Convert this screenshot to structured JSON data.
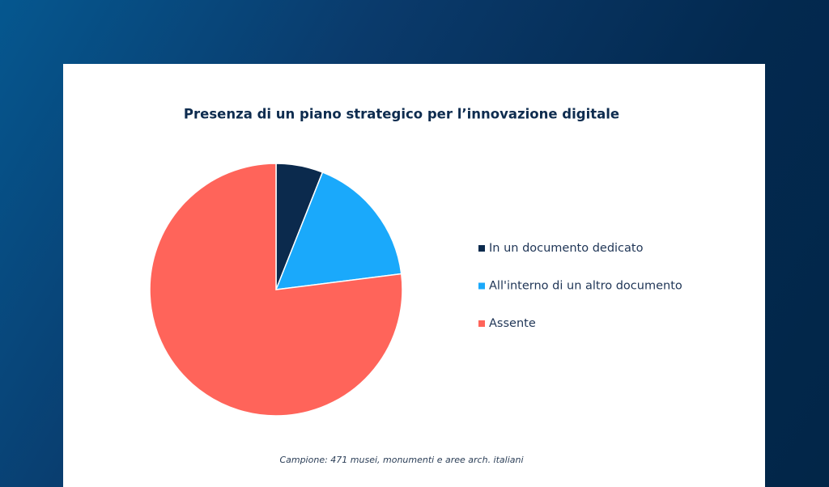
{
  "chart_data": {
    "type": "pie",
    "title": "Presenza di un piano strategico per l’innovazione digitale",
    "note": "Campione: 471 musei, monumenti e aree arch. italiani",
    "categories": [
      "In un documento dedicato",
      "All'interno di un altro documento",
      "Assente"
    ],
    "values": [
      6,
      17,
      77
    ],
    "colors": [
      "#0b2a4d",
      "#1aa9fb",
      "#ff645a"
    ]
  }
}
